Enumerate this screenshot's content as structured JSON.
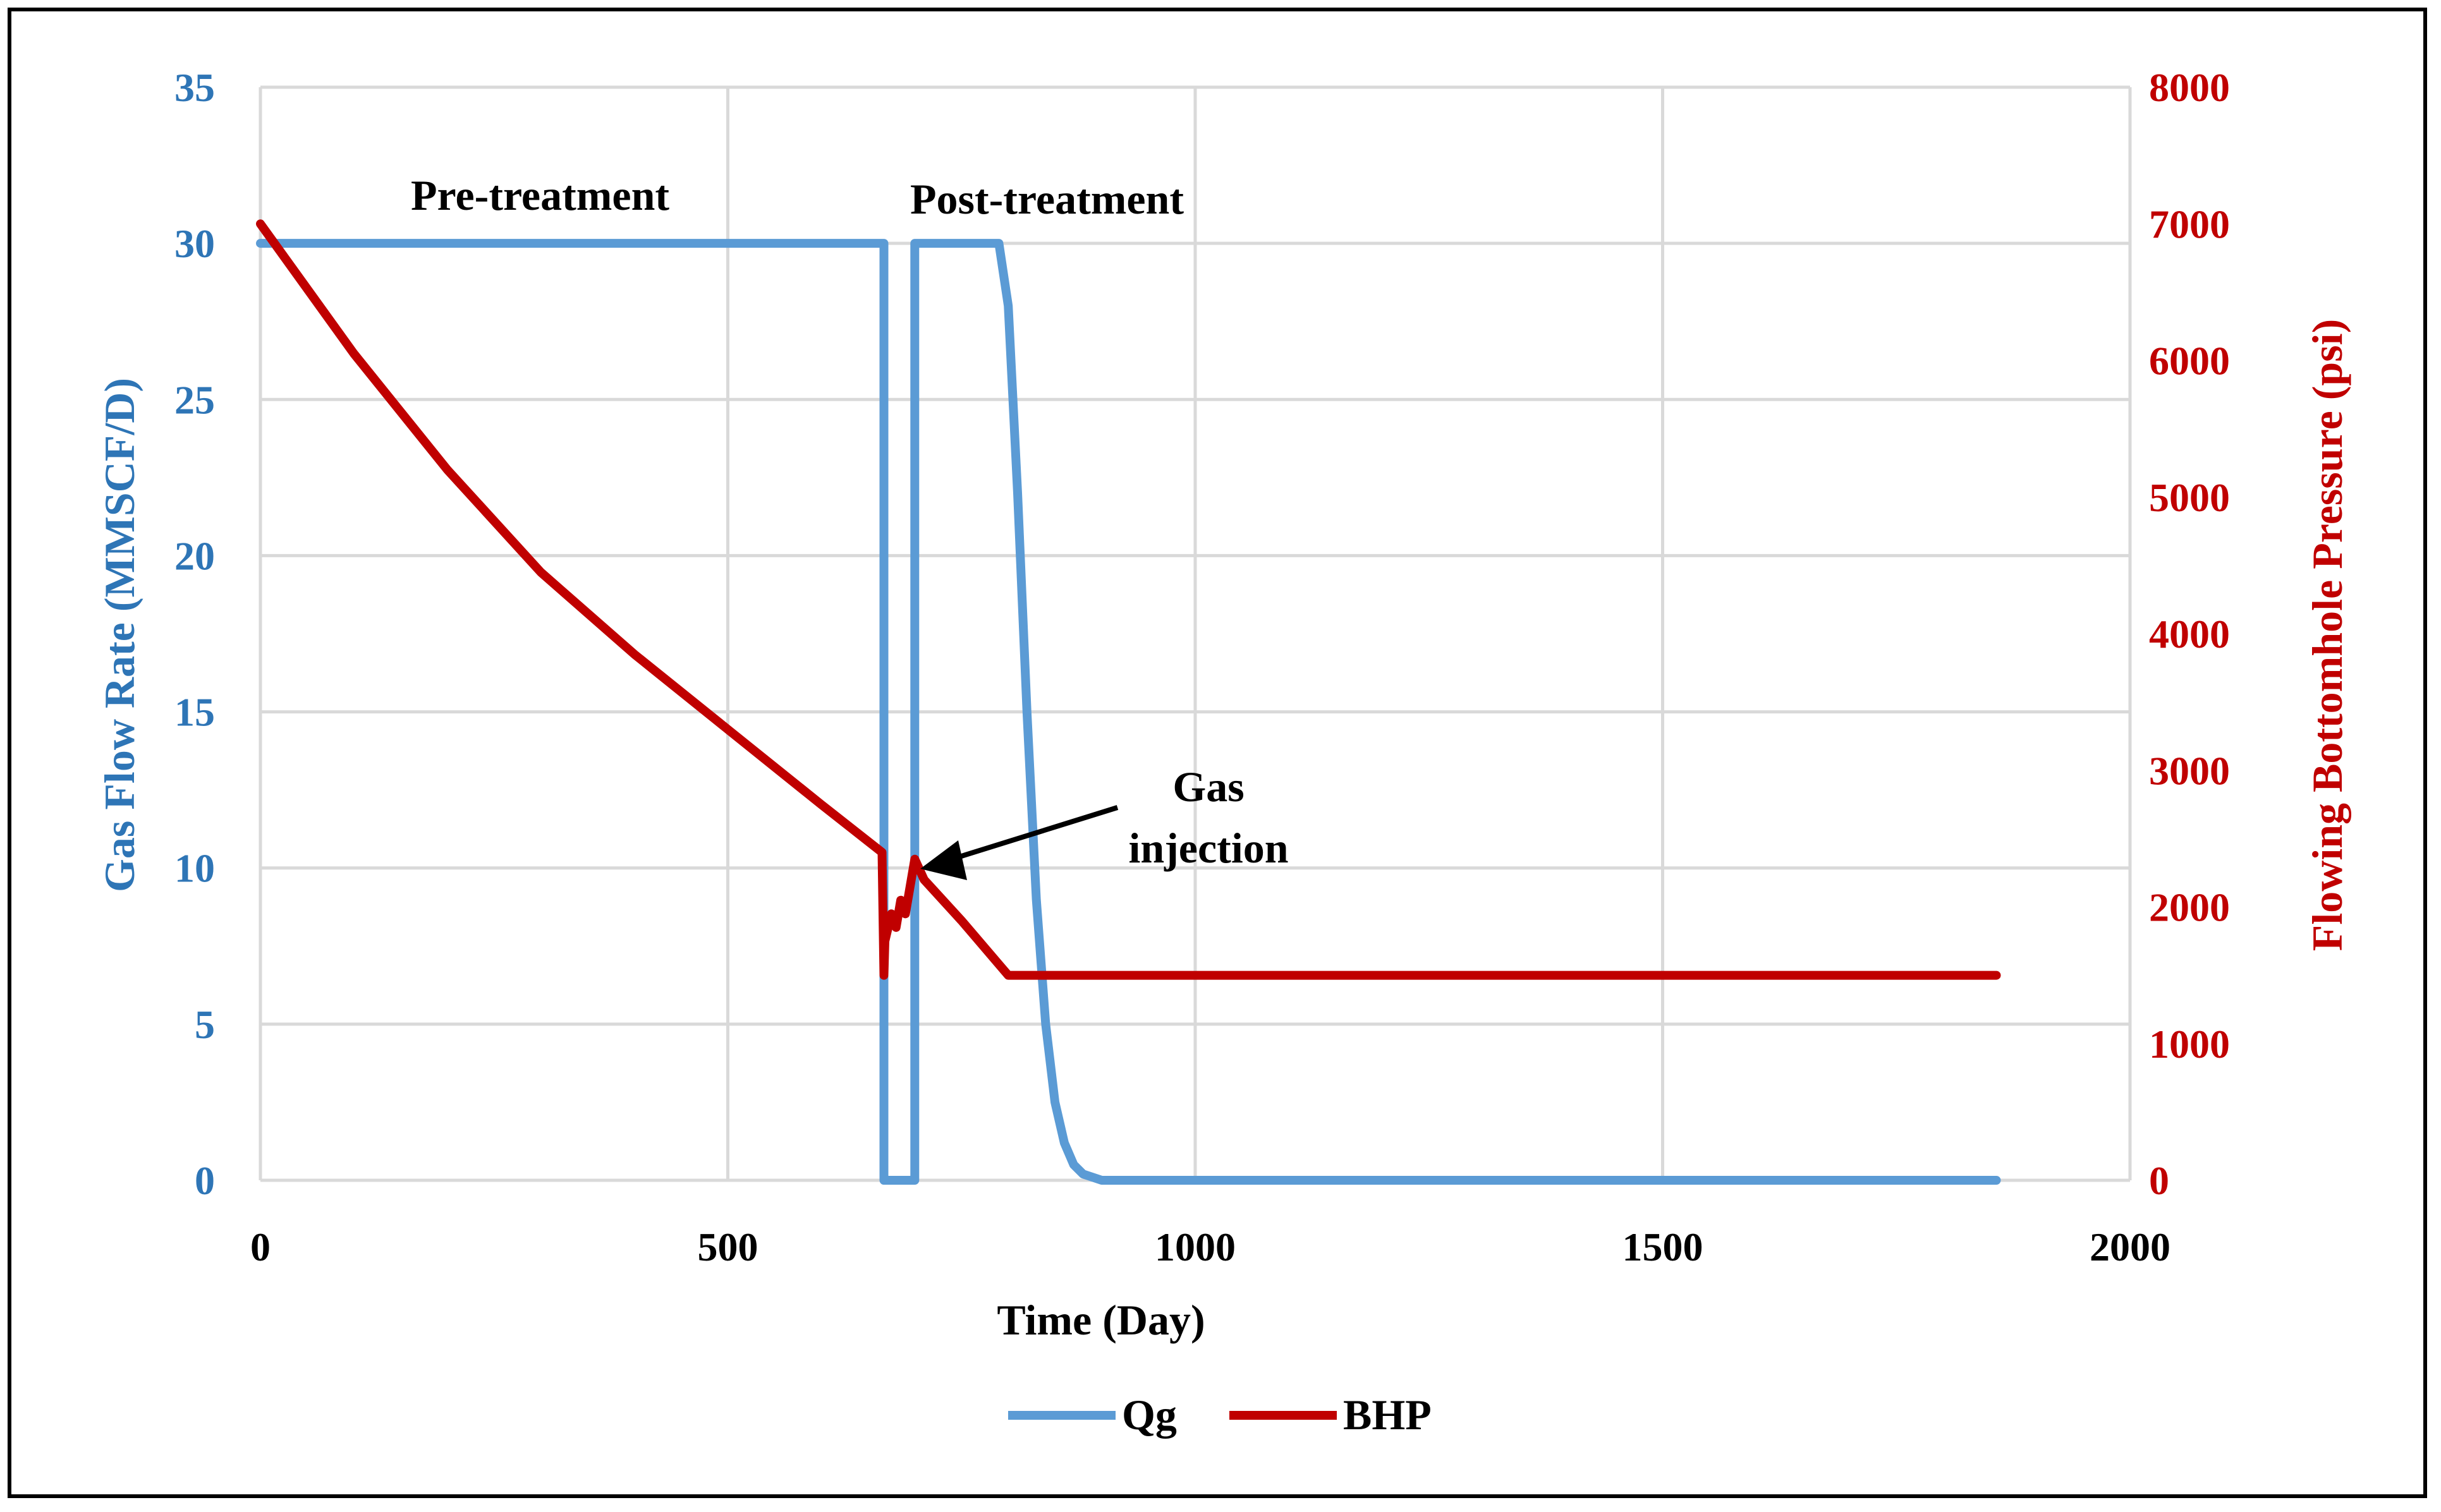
{
  "chart_data": {
    "type": "line",
    "title": "",
    "xlabel": "Time (Day)",
    "ylabel_left": "Gas Flow Rate (MMSCF/D)",
    "ylabel_right": "Flowing Bottomhole Pressure (psi)",
    "xlim": [
      0,
      2000
    ],
    "ylim_left": [
      0,
      35
    ],
    "ylim_right": [
      0,
      8000
    ],
    "x_ticks": [
      "0",
      "500",
      "1000",
      "1500",
      "2000"
    ],
    "y_left_ticks": [
      "0",
      "5",
      "10",
      "15",
      "20",
      "25",
      "30",
      "35"
    ],
    "y_right_ticks": [
      "0",
      "1000",
      "2000",
      "3000",
      "4000",
      "5000",
      "6000",
      "7000",
      "8000"
    ],
    "grid": true,
    "legend_position": "bottom",
    "colors": {
      "Qg": "#5B9BD5",
      "BHP": "#C00000",
      "left_axis": "#2E75B6",
      "right_axis": "#C00000"
    },
    "annotations": {
      "pre": "Pre-treatment",
      "post": "Post-treatment",
      "gas_line1": "Gas",
      "gas_line2": "injection"
    },
    "series": [
      {
        "name": "Qg",
        "axis": "left",
        "points": [
          [
            0,
            30
          ],
          [
            667,
            30
          ],
          [
            667,
            0
          ],
          [
            700,
            0
          ],
          [
            700,
            30
          ],
          [
            790,
            30
          ],
          [
            800,
            28
          ],
          [
            810,
            22
          ],
          [
            820,
            15
          ],
          [
            830,
            9
          ],
          [
            840,
            5
          ],
          [
            850,
            2.5
          ],
          [
            860,
            1.2
          ],
          [
            870,
            0.5
          ],
          [
            880,
            0.2
          ],
          [
            900,
            0
          ],
          [
            1857,
            0
          ]
        ]
      },
      {
        "name": "BHP",
        "axis": "right",
        "points": [
          [
            0,
            7000
          ],
          [
            100,
            6050
          ],
          [
            200,
            5200
          ],
          [
            300,
            4450
          ],
          [
            400,
            3850
          ],
          [
            500,
            3300
          ],
          [
            600,
            2750
          ],
          [
            665,
            2400
          ],
          [
            667,
            1500
          ],
          [
            668,
            1750
          ],
          [
            675,
            1950
          ],
          [
            680,
            1850
          ],
          [
            685,
            2050
          ],
          [
            690,
            1950
          ],
          [
            700,
            2350
          ],
          [
            710,
            2200
          ],
          [
            750,
            1900
          ],
          [
            800,
            1500
          ],
          [
            1857,
            1500
          ]
        ]
      }
    ]
  }
}
